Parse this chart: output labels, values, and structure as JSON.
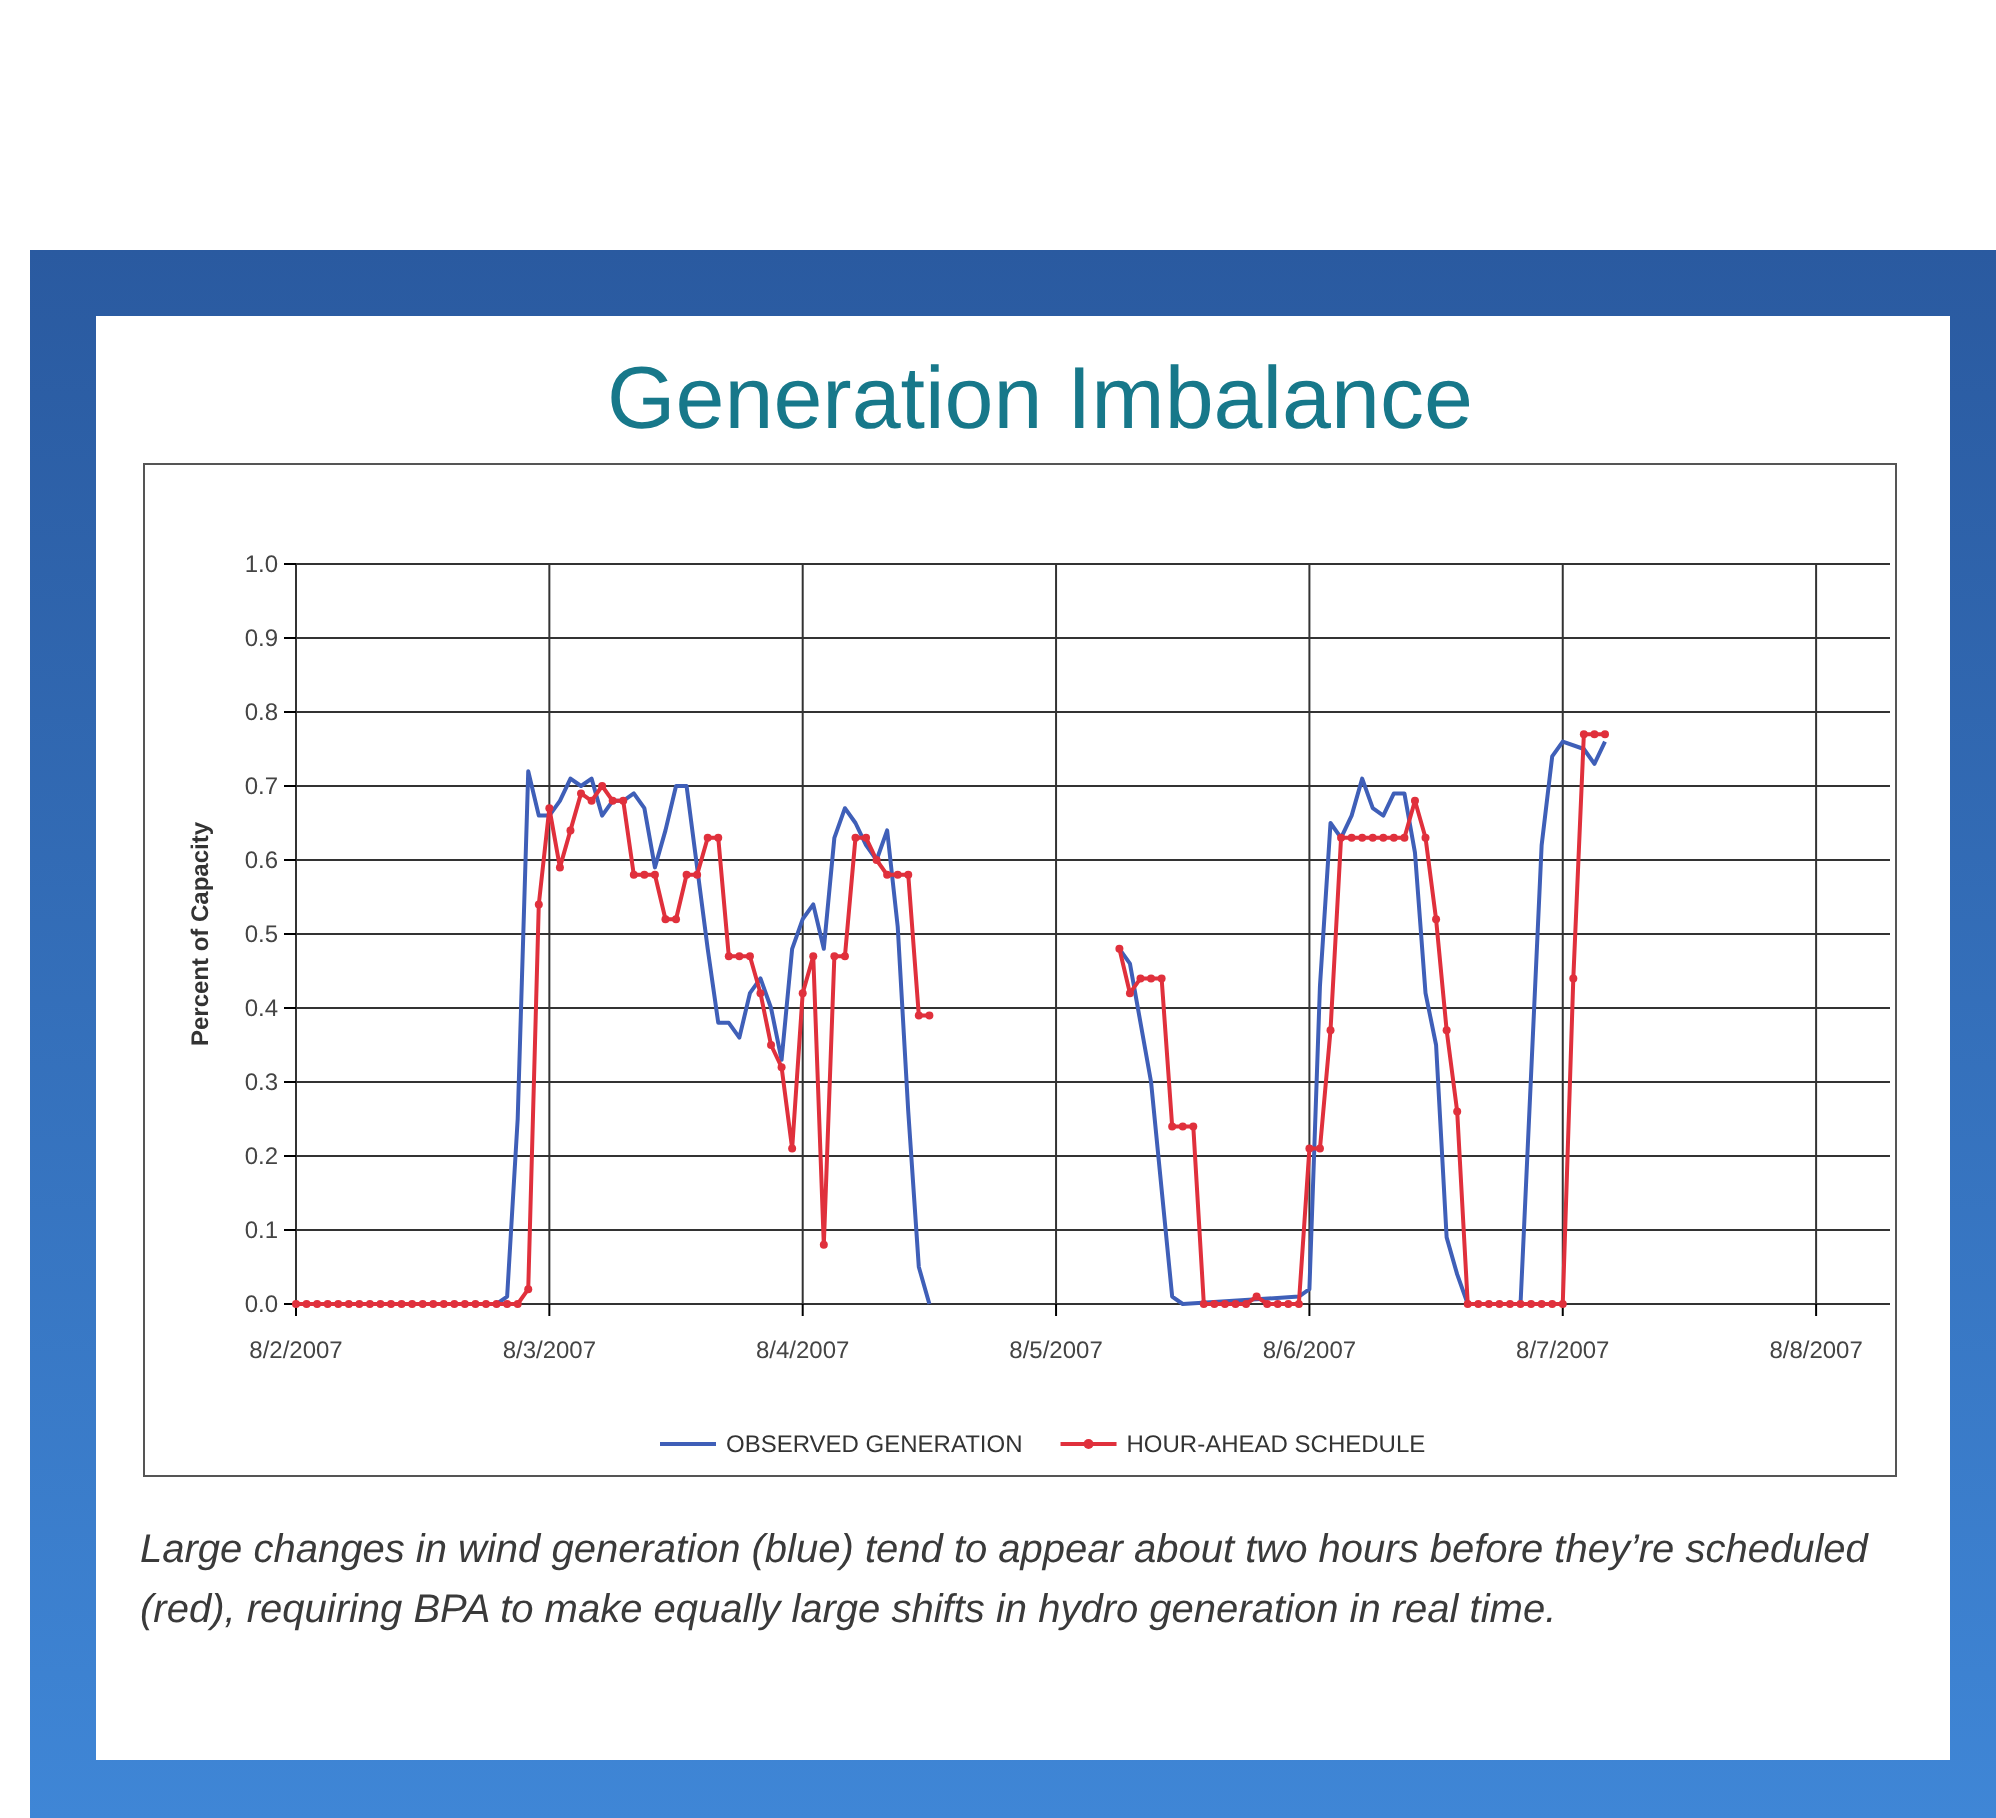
{
  "chart_data": {
    "type": "line",
    "title": "Generation Imbalance",
    "ylabel": "Percent of Capacity",
    "xlim": [
      "2007-08-02T00:00",
      "2007-08-08T07:00"
    ],
    "xticks": [
      {
        "value": "2007-08-02",
        "label": "8/2/2007"
      },
      {
        "value": "2007-08-03",
        "label": "8/3/2007"
      },
      {
        "value": "2007-08-04",
        "label": "8/4/2007"
      },
      {
        "value": "2007-08-05",
        "label": "8/5/2007"
      },
      {
        "value": "2007-08-06",
        "label": "8/6/2007"
      },
      {
        "value": "2007-08-07",
        "label": "8/7/2007"
      },
      {
        "value": "2007-08-08",
        "label": "8/8/2007"
      }
    ],
    "ylim": [
      0,
      1
    ],
    "yticks": [
      {
        "value": 0,
        "label": "0.0"
      },
      {
        "value": 0.1,
        "label": "0.1"
      },
      {
        "value": 0.2,
        "label": "0.2"
      },
      {
        "value": 0.3,
        "label": "0.3"
      },
      {
        "value": 0.4,
        "label": "0.4"
      },
      {
        "value": 0.5,
        "label": "0.5"
      },
      {
        "value": 0.6,
        "label": "0.6"
      },
      {
        "value": 0.7,
        "label": "0.7"
      },
      {
        "value": 0.8,
        "label": "0.8"
      },
      {
        "value": 0.9,
        "label": "0.9"
      },
      {
        "value": 1,
        "label": "1.0"
      }
    ],
    "grid": true,
    "legend": "bottom",
    "series": [
      {
        "name": "OBSERVED GENERATION",
        "color": "#3f5fb8",
        "marker": "none",
        "x": [
          "2007-08-02T00:00",
          "2007-08-02T19:00",
          "2007-08-02T20:00",
          "2007-08-02T21:00",
          "2007-08-02T22:00",
          "2007-08-02T23:00",
          "2007-08-03T00:00",
          "2007-08-03T01:00",
          "2007-08-03T02:00",
          "2007-08-03T03:00",
          "2007-08-03T04:00",
          "2007-08-03T05:00",
          "2007-08-03T06:00",
          "2007-08-03T07:00",
          "2007-08-03T08:00",
          "2007-08-03T09:00",
          "2007-08-03T10:00",
          "2007-08-03T11:00",
          "2007-08-03T12:00",
          "2007-08-03T13:00",
          "2007-08-03T14:00",
          "2007-08-03T15:00",
          "2007-08-03T16:00",
          "2007-08-03T17:00",
          "2007-08-03T18:00",
          "2007-08-03T19:00",
          "2007-08-03T20:00",
          "2007-08-03T21:00",
          "2007-08-03T22:00",
          "2007-08-03T23:00",
          "2007-08-04T00:00",
          "2007-08-04T01:00",
          "2007-08-04T02:00",
          "2007-08-04T03:00",
          "2007-08-04T04:00",
          "2007-08-04T05:00",
          "2007-08-04T06:00",
          "2007-08-04T07:00",
          "2007-08-04T08:00",
          "2007-08-04T09:00",
          "2007-08-04T10:00",
          "2007-08-04T11:00",
          "2007-08-04T12:00",
          "2007-08-04T13:00",
          "2007-08-05T06:00",
          "2007-08-05T07:00",
          "2007-08-05T09:00",
          "2007-08-05T11:00",
          "2007-08-05T12:00",
          "2007-08-05T23:00",
          "2007-08-06T00:00",
          "2007-08-06T01:00",
          "2007-08-06T02:00",
          "2007-08-06T03:00",
          "2007-08-06T04:00",
          "2007-08-06T05:00",
          "2007-08-06T06:00",
          "2007-08-06T07:00",
          "2007-08-06T08:00",
          "2007-08-06T09:00",
          "2007-08-06T10:00",
          "2007-08-06T11:00",
          "2007-08-06T12:00",
          "2007-08-06T13:00",
          "2007-08-06T14:00",
          "2007-08-06T15:00",
          "2007-08-06T20:00",
          "2007-08-06T22:00",
          "2007-08-06T23:00",
          "2007-08-07T00:00",
          "2007-08-07T02:00",
          "2007-08-07T03:00",
          "2007-08-07T04:00"
        ],
        "values": [
          0,
          0,
          0.01,
          0.25,
          0.72,
          0.66,
          0.66,
          0.68,
          0.71,
          0.7,
          0.71,
          0.66,
          0.68,
          0.68,
          0.69,
          0.67,
          0.59,
          0.64,
          0.7,
          0.7,
          0.59,
          0.48,
          0.38,
          0.38,
          0.36,
          0.42,
          0.44,
          0.4,
          0.33,
          0.48,
          0.52,
          0.54,
          0.48,
          0.63,
          0.67,
          0.65,
          0.62,
          0.6,
          0.64,
          0.51,
          0.26,
          0.05,
          0,
          null,
          0.48,
          0.46,
          0.3,
          0.01,
          0,
          0.01,
          0.02,
          0.43,
          0.65,
          0.63,
          0.66,
          0.71,
          0.67,
          0.66,
          0.69,
          0.69,
          0.61,
          0.42,
          0.35,
          0.09,
          0.04,
          0,
          0,
          0.62,
          0.74,
          0.76,
          0.75,
          0.73,
          0.76
        ]
      },
      {
        "name": "HOUR-AHEAD SCHEDULE",
        "color": "#e0303c",
        "marker": "circle",
        "x": [
          "2007-08-02T00:00",
          "2007-08-02T01:00",
          "2007-08-02T02:00",
          "2007-08-02T03:00",
          "2007-08-02T04:00",
          "2007-08-02T05:00",
          "2007-08-02T06:00",
          "2007-08-02T07:00",
          "2007-08-02T08:00",
          "2007-08-02T09:00",
          "2007-08-02T10:00",
          "2007-08-02T11:00",
          "2007-08-02T12:00",
          "2007-08-02T13:00",
          "2007-08-02T14:00",
          "2007-08-02T15:00",
          "2007-08-02T16:00",
          "2007-08-02T17:00",
          "2007-08-02T18:00",
          "2007-08-02T19:00",
          "2007-08-02T20:00",
          "2007-08-02T21:00",
          "2007-08-02T22:00",
          "2007-08-02T23:00",
          "2007-08-03T00:00",
          "2007-08-03T01:00",
          "2007-08-03T02:00",
          "2007-08-03T03:00",
          "2007-08-03T04:00",
          "2007-08-03T05:00",
          "2007-08-03T06:00",
          "2007-08-03T07:00",
          "2007-08-03T08:00",
          "2007-08-03T09:00",
          "2007-08-03T10:00",
          "2007-08-03T11:00",
          "2007-08-03T12:00",
          "2007-08-03T13:00",
          "2007-08-03T14:00",
          "2007-08-03T15:00",
          "2007-08-03T16:00",
          "2007-08-03T17:00",
          "2007-08-03T18:00",
          "2007-08-03T19:00",
          "2007-08-03T20:00",
          "2007-08-03T21:00",
          "2007-08-03T22:00",
          "2007-08-03T23:00",
          "2007-08-04T00:00",
          "2007-08-04T01:00",
          "2007-08-04T02:00",
          "2007-08-04T03:00",
          "2007-08-04T04:00",
          "2007-08-04T05:00",
          "2007-08-04T06:00",
          "2007-08-04T07:00",
          "2007-08-04T08:00",
          "2007-08-04T09:00",
          "2007-08-04T10:00",
          "2007-08-04T11:00",
          "2007-08-04T12:00",
          "2007-08-04T13:00",
          "2007-08-05T06:00",
          "2007-08-05T07:00",
          "2007-08-05T08:00",
          "2007-08-05T09:00",
          "2007-08-05T10:00",
          "2007-08-05T11:00",
          "2007-08-05T12:00",
          "2007-08-05T13:00",
          "2007-08-05T14:00",
          "2007-08-05T15:00",
          "2007-08-05T16:00",
          "2007-08-05T17:00",
          "2007-08-05T18:00",
          "2007-08-05T19:00",
          "2007-08-05T20:00",
          "2007-08-05T21:00",
          "2007-08-05T22:00",
          "2007-08-05T23:00",
          "2007-08-06T00:00",
          "2007-08-06T01:00",
          "2007-08-06T02:00",
          "2007-08-06T03:00",
          "2007-08-06T04:00",
          "2007-08-06T05:00",
          "2007-08-06T06:00",
          "2007-08-06T07:00",
          "2007-08-06T08:00",
          "2007-08-06T09:00",
          "2007-08-06T10:00",
          "2007-08-06T11:00",
          "2007-08-06T12:00",
          "2007-08-06T13:00",
          "2007-08-06T14:00",
          "2007-08-06T15:00",
          "2007-08-06T16:00",
          "2007-08-06T17:00",
          "2007-08-06T18:00",
          "2007-08-06T19:00",
          "2007-08-06T20:00",
          "2007-08-06T21:00",
          "2007-08-06T22:00",
          "2007-08-06T23:00",
          "2007-08-07T00:00",
          "2007-08-07T01:00",
          "2007-08-07T02:00",
          "2007-08-07T03:00",
          "2007-08-07T04:00"
        ],
        "values": [
          0,
          0,
          0,
          0,
          0,
          0,
          0,
          0,
          0,
          0,
          0,
          0,
          0,
          0,
          0,
          0,
          0,
          0,
          0,
          0,
          0,
          0,
          0.02,
          0.54,
          0.67,
          0.59,
          0.64,
          0.69,
          0.68,
          0.7,
          0.68,
          0.68,
          0.58,
          0.58,
          0.58,
          0.52,
          0.52,
          0.58,
          0.58,
          0.63,
          0.63,
          0.47,
          0.47,
          0.47,
          0.42,
          0.35,
          0.32,
          0.21,
          0.42,
          0.47,
          0.08,
          0.47,
          0.47,
          0.63,
          0.63,
          0.6,
          0.58,
          0.58,
          0.58,
          0.39,
          0.39,
          null,
          0.48,
          0.42,
          0.44,
          0.44,
          0.44,
          0.24,
          0.24,
          0.24,
          0,
          0,
          0,
          0,
          0,
          0.01,
          0,
          0,
          0,
          0,
          0.21,
          0.21,
          0.37,
          0.63,
          0.63,
          0.63,
          0.63,
          0.63,
          0.63,
          0.63,
          0.68,
          0.63,
          0.52,
          0.37,
          0.26,
          0,
          0,
          0,
          0,
          0,
          0,
          0,
          0,
          0,
          0,
          0.44,
          0.77,
          0.77,
          0.77
        ]
      }
    ],
    "annotations": [
      "Large changes in wind generation (blue) tend to appear about two hours before they’re scheduled (red), requiring BPA to make equally large shifts in hydro generation in real time."
    ]
  }
}
